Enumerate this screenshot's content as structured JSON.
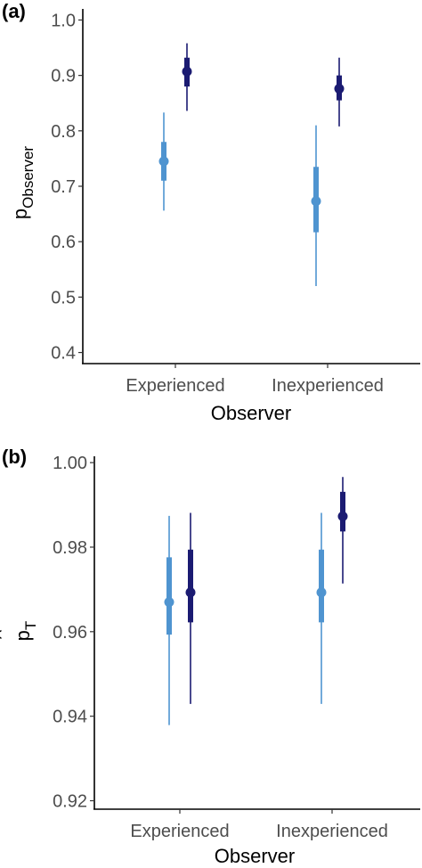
{
  "chart_data": [
    {
      "panel_label": "(a)",
      "type": "scatter",
      "subtype": "pointinterval",
      "categories": [
        "Experienced",
        "Inexperienced"
      ],
      "xlabel": "Observer",
      "ylabel_main": "p",
      "ylabel_hat": "^",
      "ylabel_sub": "Observer",
      "ylim": [
        0.38,
        1.02
      ],
      "yticks": [
        0.4,
        0.5,
        0.6,
        0.7,
        0.8,
        0.9,
        1.0
      ],
      "ytick_labels": [
        "0.4",
        "0.5",
        "0.6",
        "0.7",
        "0.8",
        "0.9",
        "1.0"
      ],
      "grid": false,
      "series": [
        {
          "color": "#4f94d0",
          "points": [
            {
              "category": "Experienced",
              "point": 0.745,
              "inner": [
                0.71,
                0.78
              ],
              "outer": [
                0.656,
                0.833
              ]
            },
            {
              "category": "Inexperienced",
              "point": 0.673,
              "inner": [
                0.617,
                0.735
              ],
              "outer": [
                0.52,
                0.81
              ]
            }
          ]
        },
        {
          "color": "#1b1b72",
          "points": [
            {
              "category": "Experienced",
              "point": 0.907,
              "inner": [
                0.88,
                0.932
              ],
              "outer": [
                0.836,
                0.958
              ]
            },
            {
              "category": "Inexperienced",
              "point": 0.876,
              "inner": [
                0.855,
                0.9
              ],
              "outer": [
                0.808,
                0.932
              ]
            }
          ]
        }
      ]
    },
    {
      "panel_label": "(b)",
      "type": "scatter",
      "subtype": "pointinterval",
      "categories": [
        "Experienced",
        "Inexperienced"
      ],
      "xlabel": "Observer",
      "ylabel_main": "p",
      "ylabel_hat": "^",
      "ylabel_sub": "T",
      "ylim": [
        0.918,
        1.0015
      ],
      "yticks": [
        0.92,
        0.94,
        0.96,
        0.98,
        1.0
      ],
      "ytick_labels": [
        "0.92",
        "0.94",
        "0.96",
        "0.98",
        "1.00"
      ],
      "grid": false,
      "series": [
        {
          "color": "#4f94d0",
          "points": [
            {
              "category": "Experienced",
              "point": 0.967,
              "inner": [
                0.9593,
                0.9776
              ],
              "outer": [
                0.9379,
                0.9874
              ]
            },
            {
              "category": "Inexperienced",
              "point": 0.9693,
              "inner": [
                0.9622,
                0.9794
              ],
              "outer": [
                0.9429,
                0.9881
              ]
            }
          ]
        },
        {
          "color": "#1b1b72",
          "points": [
            {
              "category": "Experienced",
              "point": 0.9693,
              "inner": [
                0.9622,
                0.9794
              ],
              "outer": [
                0.9429,
                0.9881
              ]
            },
            {
              "category": "Inexperienced",
              "point": 0.9873,
              "inner": [
                0.9837,
                0.9931
              ],
              "outer": [
                0.9714,
                0.9966
              ]
            }
          ]
        }
      ]
    }
  ]
}
